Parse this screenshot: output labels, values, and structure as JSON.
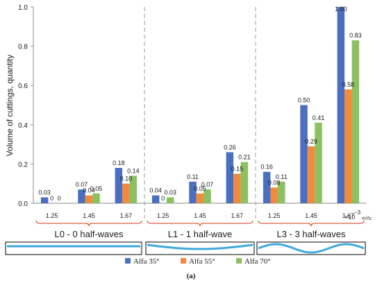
{
  "chart_data": {
    "type": "bar",
    "ylabel": "Volume of cuttings, quantity",
    "ylim": [
      0,
      1.0
    ],
    "yticks": [
      "0.0",
      "0.2",
      "0.4",
      "0.6",
      "0.8",
      "1.0"
    ],
    "x_unit_prefix": "×10",
    "x_unit_exp": "−3",
    "x_unit": "m³/s",
    "groups": [
      {
        "label": "L0 - 0 half-waves",
        "waves": 0,
        "categories": [
          "1.25",
          "1.45",
          "1.67"
        ]
      },
      {
        "label": "L1 - 1 half-wave",
        "waves": 1,
        "categories": [
          "1.25",
          "1.45",
          "1.67"
        ]
      },
      {
        "label": "L3 - 3 half-waves",
        "waves": 3,
        "categories": [
          "1.25",
          "1.45",
          "1.67"
        ]
      }
    ],
    "series": [
      {
        "name": "Alfa 35°",
        "color": "#4a6fbf",
        "values": [
          0.03,
          0.07,
          0.18,
          0.04,
          0.11,
          0.26,
          0.16,
          0.5,
          1.0
        ],
        "labels": [
          "0.03",
          "0.07",
          "0.18",
          "0.04",
          "0.11",
          "0.26",
          "0.16",
          "0.50",
          "1.00"
        ]
      },
      {
        "name": "Alfa 55°",
        "color": "#f08a3c",
        "values": [
          0,
          0.04,
          0.1,
          0,
          0.05,
          0.15,
          0.08,
          0.29,
          0.58
        ],
        "labels": [
          "0",
          "0.04",
          "0.10",
          "0",
          "0.05",
          "0.15",
          "0.08",
          "0.29",
          "0.58"
        ]
      },
      {
        "name": "Alfa 70°",
        "color": "#8cc060",
        "values": [
          0,
          0.05,
          0.14,
          0.03,
          0.07,
          0.21,
          0.11,
          0.41,
          0.83
        ],
        "labels": [
          "0",
          "0.05",
          "0.14",
          "0.03",
          "0.07",
          "0.21",
          "0.11",
          "0.41",
          "0.83"
        ]
      }
    ],
    "caption": "(a)",
    "grid": false,
    "legend_position": "bottom"
  },
  "colors": {
    "axis": "#8a8a8a",
    "separator": "#999999",
    "bracket": "#e05a3a",
    "wave": "#3da8dc",
    "text": "#1a1a1a"
  }
}
